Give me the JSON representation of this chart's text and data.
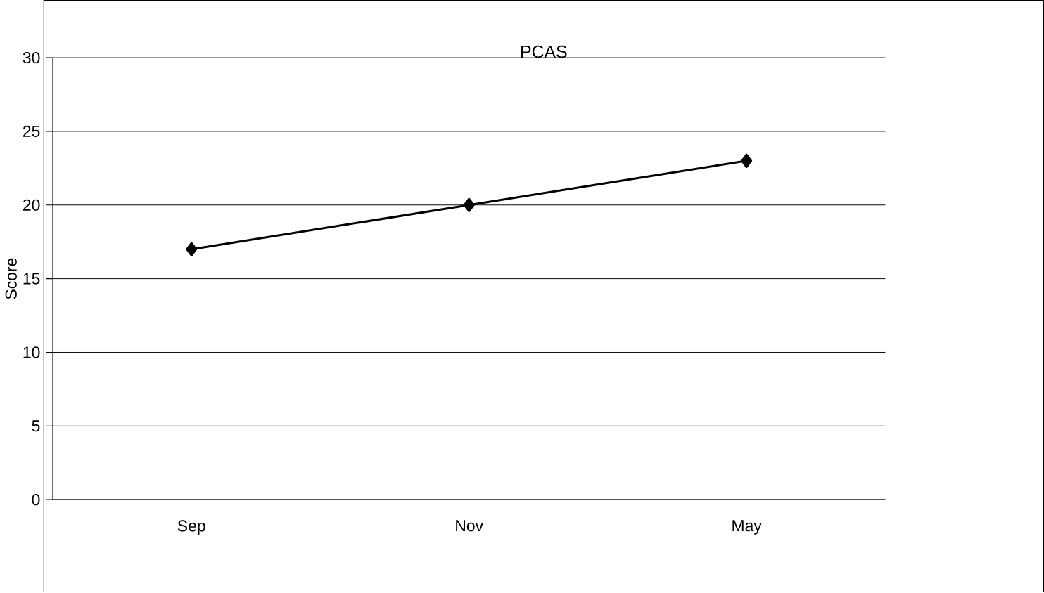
{
  "chart_data": {
    "type": "line",
    "title": "PCAS",
    "ylabel": "Score",
    "categories": [
      "Sep",
      "Nov",
      "May"
    ],
    "series": [
      {
        "color": "#000000",
        "values": [
          17,
          20,
          23
        ]
      }
    ],
    "ylim": [
      0,
      30
    ],
    "yticks": [
      0,
      5,
      10,
      15,
      20,
      25,
      30
    ],
    "grid": "y",
    "marker": "diamond",
    "line_style": "solid"
  }
}
